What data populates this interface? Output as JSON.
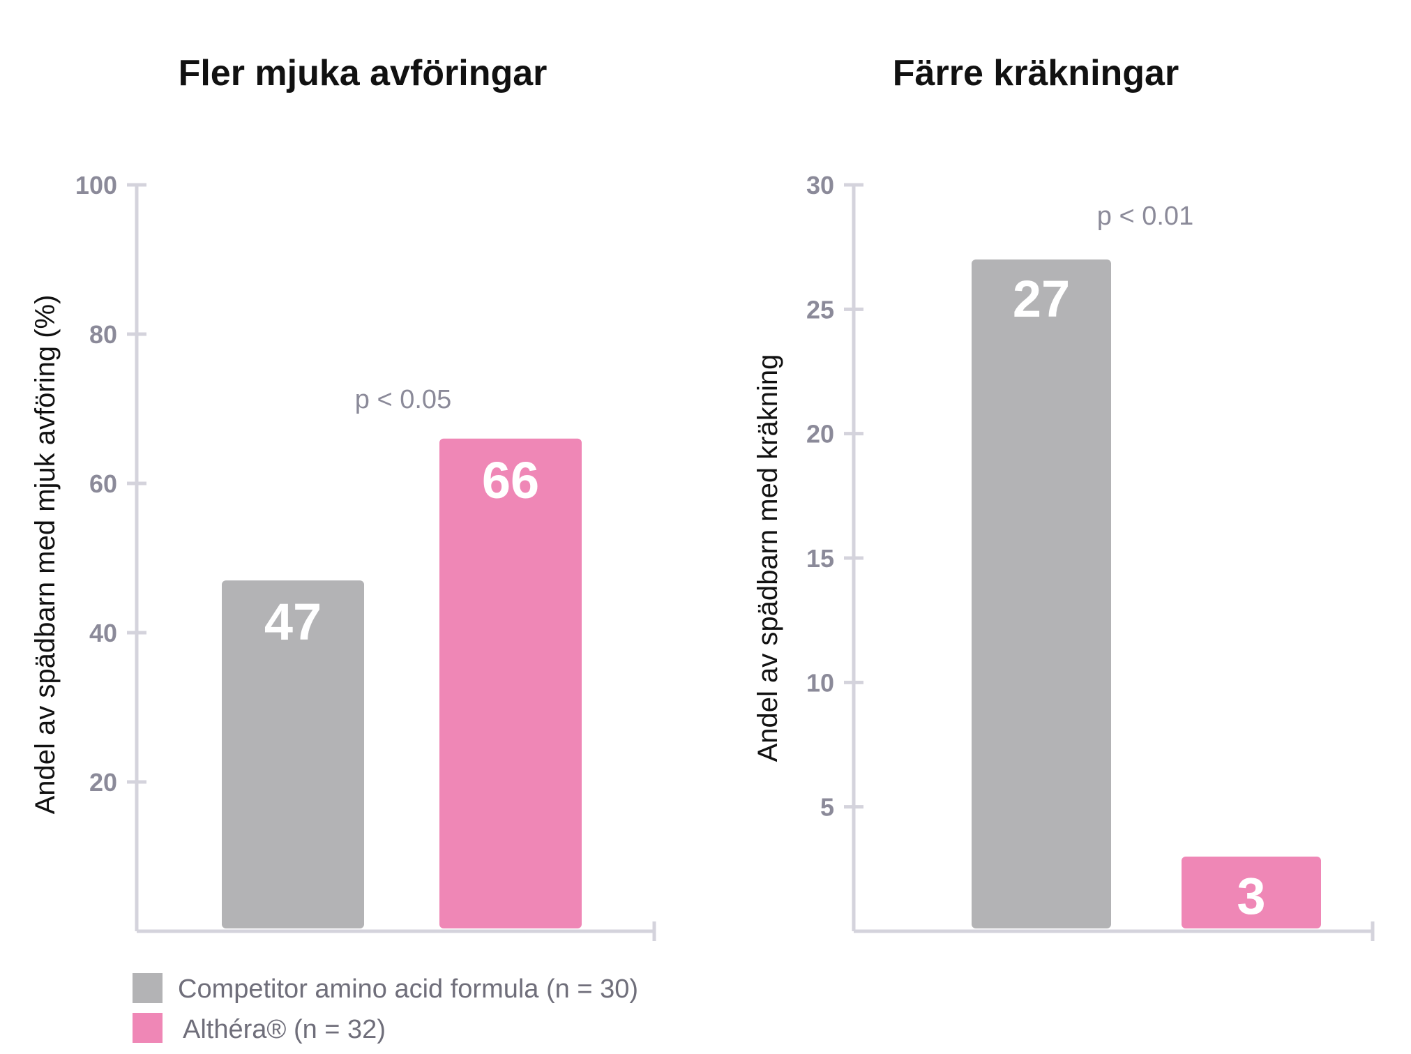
{
  "colors": {
    "competitor": "#b3b3b5",
    "althera": "#ef87b6",
    "axis": "#d4d3dc",
    "tick_text": "#8b8a99",
    "title_text": "#111111"
  },
  "legend": {
    "items": [
      {
        "key": "competitor",
        "label": "Competitor amino acid formula (n = 30)"
      },
      {
        "key": "althera",
        "label": "Althéra® (n = 32)"
      }
    ]
  },
  "chart_data": [
    {
      "type": "bar",
      "title": "Fler mjuka avföringar",
      "ylabel": "Andel av spädbarn med mjuk avföring (%)",
      "xlabel": "",
      "ylim": [
        0,
        100
      ],
      "yticks": [
        20,
        40,
        60,
        80,
        100
      ],
      "annotation": "p < 0.05",
      "grid": false,
      "series": [
        {
          "key": "competitor",
          "value": 47,
          "label": "47"
        },
        {
          "key": "althera",
          "value": 66,
          "label": "66"
        }
      ]
    },
    {
      "type": "bar",
      "title": "Färre kräkningar",
      "ylabel": "Andel av spädbarn med kräkning",
      "xlabel": "",
      "ylim": [
        0,
        30
      ],
      "yticks": [
        5,
        10,
        15,
        20,
        25,
        30
      ],
      "annotation": "p < 0.01",
      "grid": false,
      "series": [
        {
          "key": "competitor",
          "value": 27,
          "label": "27"
        },
        {
          "key": "althera",
          "value": 3,
          "label": "3"
        }
      ]
    }
  ]
}
